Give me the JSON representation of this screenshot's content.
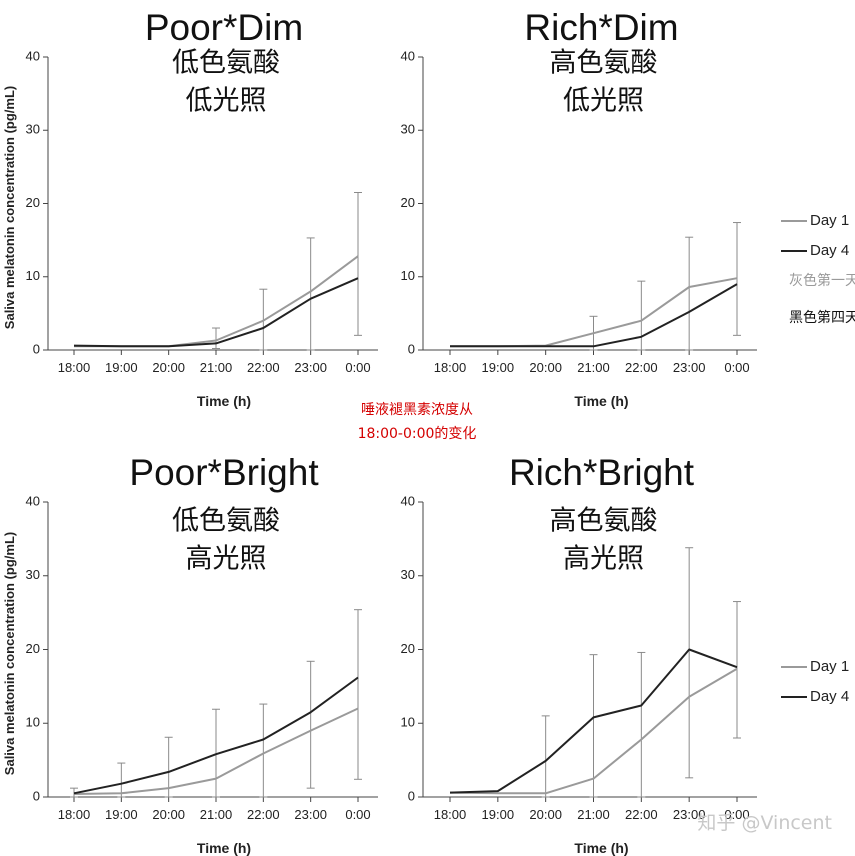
{
  "y_axis_label": "Saliva melatonin concentration (pg/mL)",
  "center_note": [
    "唾液褪黑素浓度从",
    "18:00-0:00的变化"
  ],
  "watermark": "知乎 @Vincent",
  "legend_notes": {
    "day1": "灰色第一天",
    "day4": "黑色第四天"
  },
  "colors": {
    "day1": "#9a9a9a",
    "day4": "#222222",
    "note": "#d40000"
  },
  "chart_data": [
    {
      "type": "line",
      "title": "Poor*Dim",
      "subtitle": [
        "低色氨酸",
        "低光照"
      ],
      "xlabel": "Time (h)",
      "ylabel": "Saliva melatonin concentration (pg/mL)",
      "categories": [
        "18:00",
        "19:00",
        "20:00",
        "21:00",
        "22:00",
        "23:00",
        "0:00"
      ],
      "ylim": [
        0,
        40
      ],
      "yticks": [
        0,
        10,
        20,
        30,
        40
      ],
      "series": [
        {
          "name": "Day 1",
          "values": [
            0.5,
            0.5,
            0.5,
            1.3,
            4.0,
            8.0,
            12.8
          ]
        },
        {
          "name": "Day 4",
          "values": [
            0.6,
            0.5,
            0.5,
            0.9,
            3.0,
            7.0,
            9.8
          ]
        }
      ],
      "error_bars": [
        {
          "x": "21:00",
          "low": 0.2,
          "high": 3.0
        },
        {
          "x": "22:00",
          "low": 0.0,
          "high": 8.3
        },
        {
          "x": "23:00",
          "low": 0.0,
          "high": 15.3
        },
        {
          "x": "0:00",
          "low": 2.0,
          "high": 21.5
        }
      ],
      "legend": "none"
    },
    {
      "type": "line",
      "title": "Rich*Dim",
      "subtitle": [
        "高色氨酸",
        "低光照"
      ],
      "xlabel": "Time (h)",
      "categories": [
        "18:00",
        "19:00",
        "20:00",
        "21:00",
        "22:00",
        "23:00",
        "0:00"
      ],
      "ylim": [
        0,
        40
      ],
      "yticks": [
        0,
        10,
        20,
        30,
        40
      ],
      "series": [
        {
          "name": "Day 1",
          "values": [
            0.5,
            0.5,
            0.6,
            2.3,
            4.0,
            8.6,
            9.8
          ]
        },
        {
          "name": "Day 4",
          "values": [
            0.5,
            0.5,
            0.5,
            0.5,
            1.8,
            5.2,
            9.0
          ]
        }
      ],
      "error_bars": [
        {
          "x": "21:00",
          "low": 0.0,
          "high": 4.6
        },
        {
          "x": "22:00",
          "low": 0.0,
          "high": 9.4
        },
        {
          "x": "23:00",
          "low": 0.0,
          "high": 15.4
        },
        {
          "x": "0:00",
          "low": 2.0,
          "high": 17.4
        }
      ],
      "legend": "right"
    },
    {
      "type": "line",
      "title": "Poor*Bright",
      "subtitle": [
        "低色氨酸",
        "高光照"
      ],
      "xlabel": "Time (h)",
      "ylabel": "Saliva melatonin concentration (pg/mL)",
      "categories": [
        "18:00",
        "19:00",
        "20:00",
        "21:00",
        "22:00",
        "23:00",
        "0:00"
      ],
      "ylim": [
        0,
        40
      ],
      "yticks": [
        0,
        10,
        20,
        30,
        40
      ],
      "series": [
        {
          "name": "Day 1",
          "values": [
            0.4,
            0.5,
            1.2,
            2.5,
            5.9,
            9.0,
            12.0
          ]
        },
        {
          "name": "Day 4",
          "values": [
            0.5,
            1.8,
            3.4,
            5.8,
            7.8,
            11.5,
            16.2
          ]
        }
      ],
      "error_bars": [
        {
          "x": "18:00",
          "low": 0.0,
          "high": 1.2
        },
        {
          "x": "19:00",
          "low": 0.0,
          "high": 4.6
        },
        {
          "x": "20:00",
          "low": 0.0,
          "high": 8.1
        },
        {
          "x": "21:00",
          "low": 0.0,
          "high": 11.9
        },
        {
          "x": "22:00",
          "low": 0.0,
          "high": 12.6
        },
        {
          "x": "23:00",
          "low": 1.2,
          "high": 18.4
        },
        {
          "x": "0:00",
          "low": 2.4,
          "high": 25.4
        }
      ],
      "legend": "none"
    },
    {
      "type": "line",
      "title": "Rich*Bright",
      "subtitle": [
        "高色氨酸",
        "高光照"
      ],
      "xlabel": "Time (h)",
      "categories": [
        "18:00",
        "19:00",
        "20:00",
        "21:00",
        "22:00",
        "23:00",
        "0:00"
      ],
      "ylim": [
        0,
        40
      ],
      "yticks": [
        0,
        10,
        20,
        30,
        40
      ],
      "series": [
        {
          "name": "Day 1",
          "values": [
            0.6,
            0.5,
            0.5,
            2.5,
            7.8,
            13.6,
            17.4
          ]
        },
        {
          "name": "Day 4",
          "values": [
            0.6,
            0.8,
            4.9,
            10.8,
            12.4,
            20.0,
            17.6
          ]
        }
      ],
      "error_bars": [
        {
          "x": "20:00",
          "low": 0.0,
          "high": 11.0
        },
        {
          "x": "21:00",
          "low": 0.0,
          "high": 19.3
        },
        {
          "x": "22:00",
          "low": 0.0,
          "high": 19.6
        },
        {
          "x": "23:00",
          "low": 2.6,
          "high": 33.8
        },
        {
          "x": "0:00",
          "low": 8.0,
          "high": 26.5
        }
      ],
      "legend": "right"
    }
  ]
}
